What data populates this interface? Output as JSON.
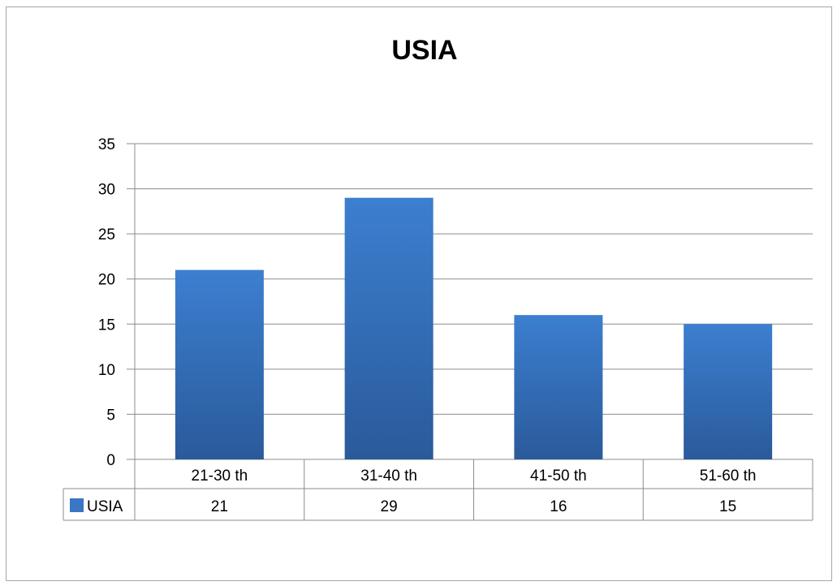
{
  "chart_data": {
    "type": "bar",
    "title": "USIA",
    "categories": [
      "21-30 th",
      "31-40 th",
      "41-50 th",
      "51-60 th"
    ],
    "series": [
      {
        "name": "USIA",
        "values": [
          21,
          29,
          16,
          15
        ]
      }
    ],
    "ylim": [
      0,
      35
    ],
    "yticks": [
      0,
      5,
      10,
      15,
      20,
      25,
      30,
      35
    ],
    "grid": true,
    "data_table": true,
    "bar_color": "#3a76c4",
    "bar_color_dark": "#2a5a9a"
  }
}
